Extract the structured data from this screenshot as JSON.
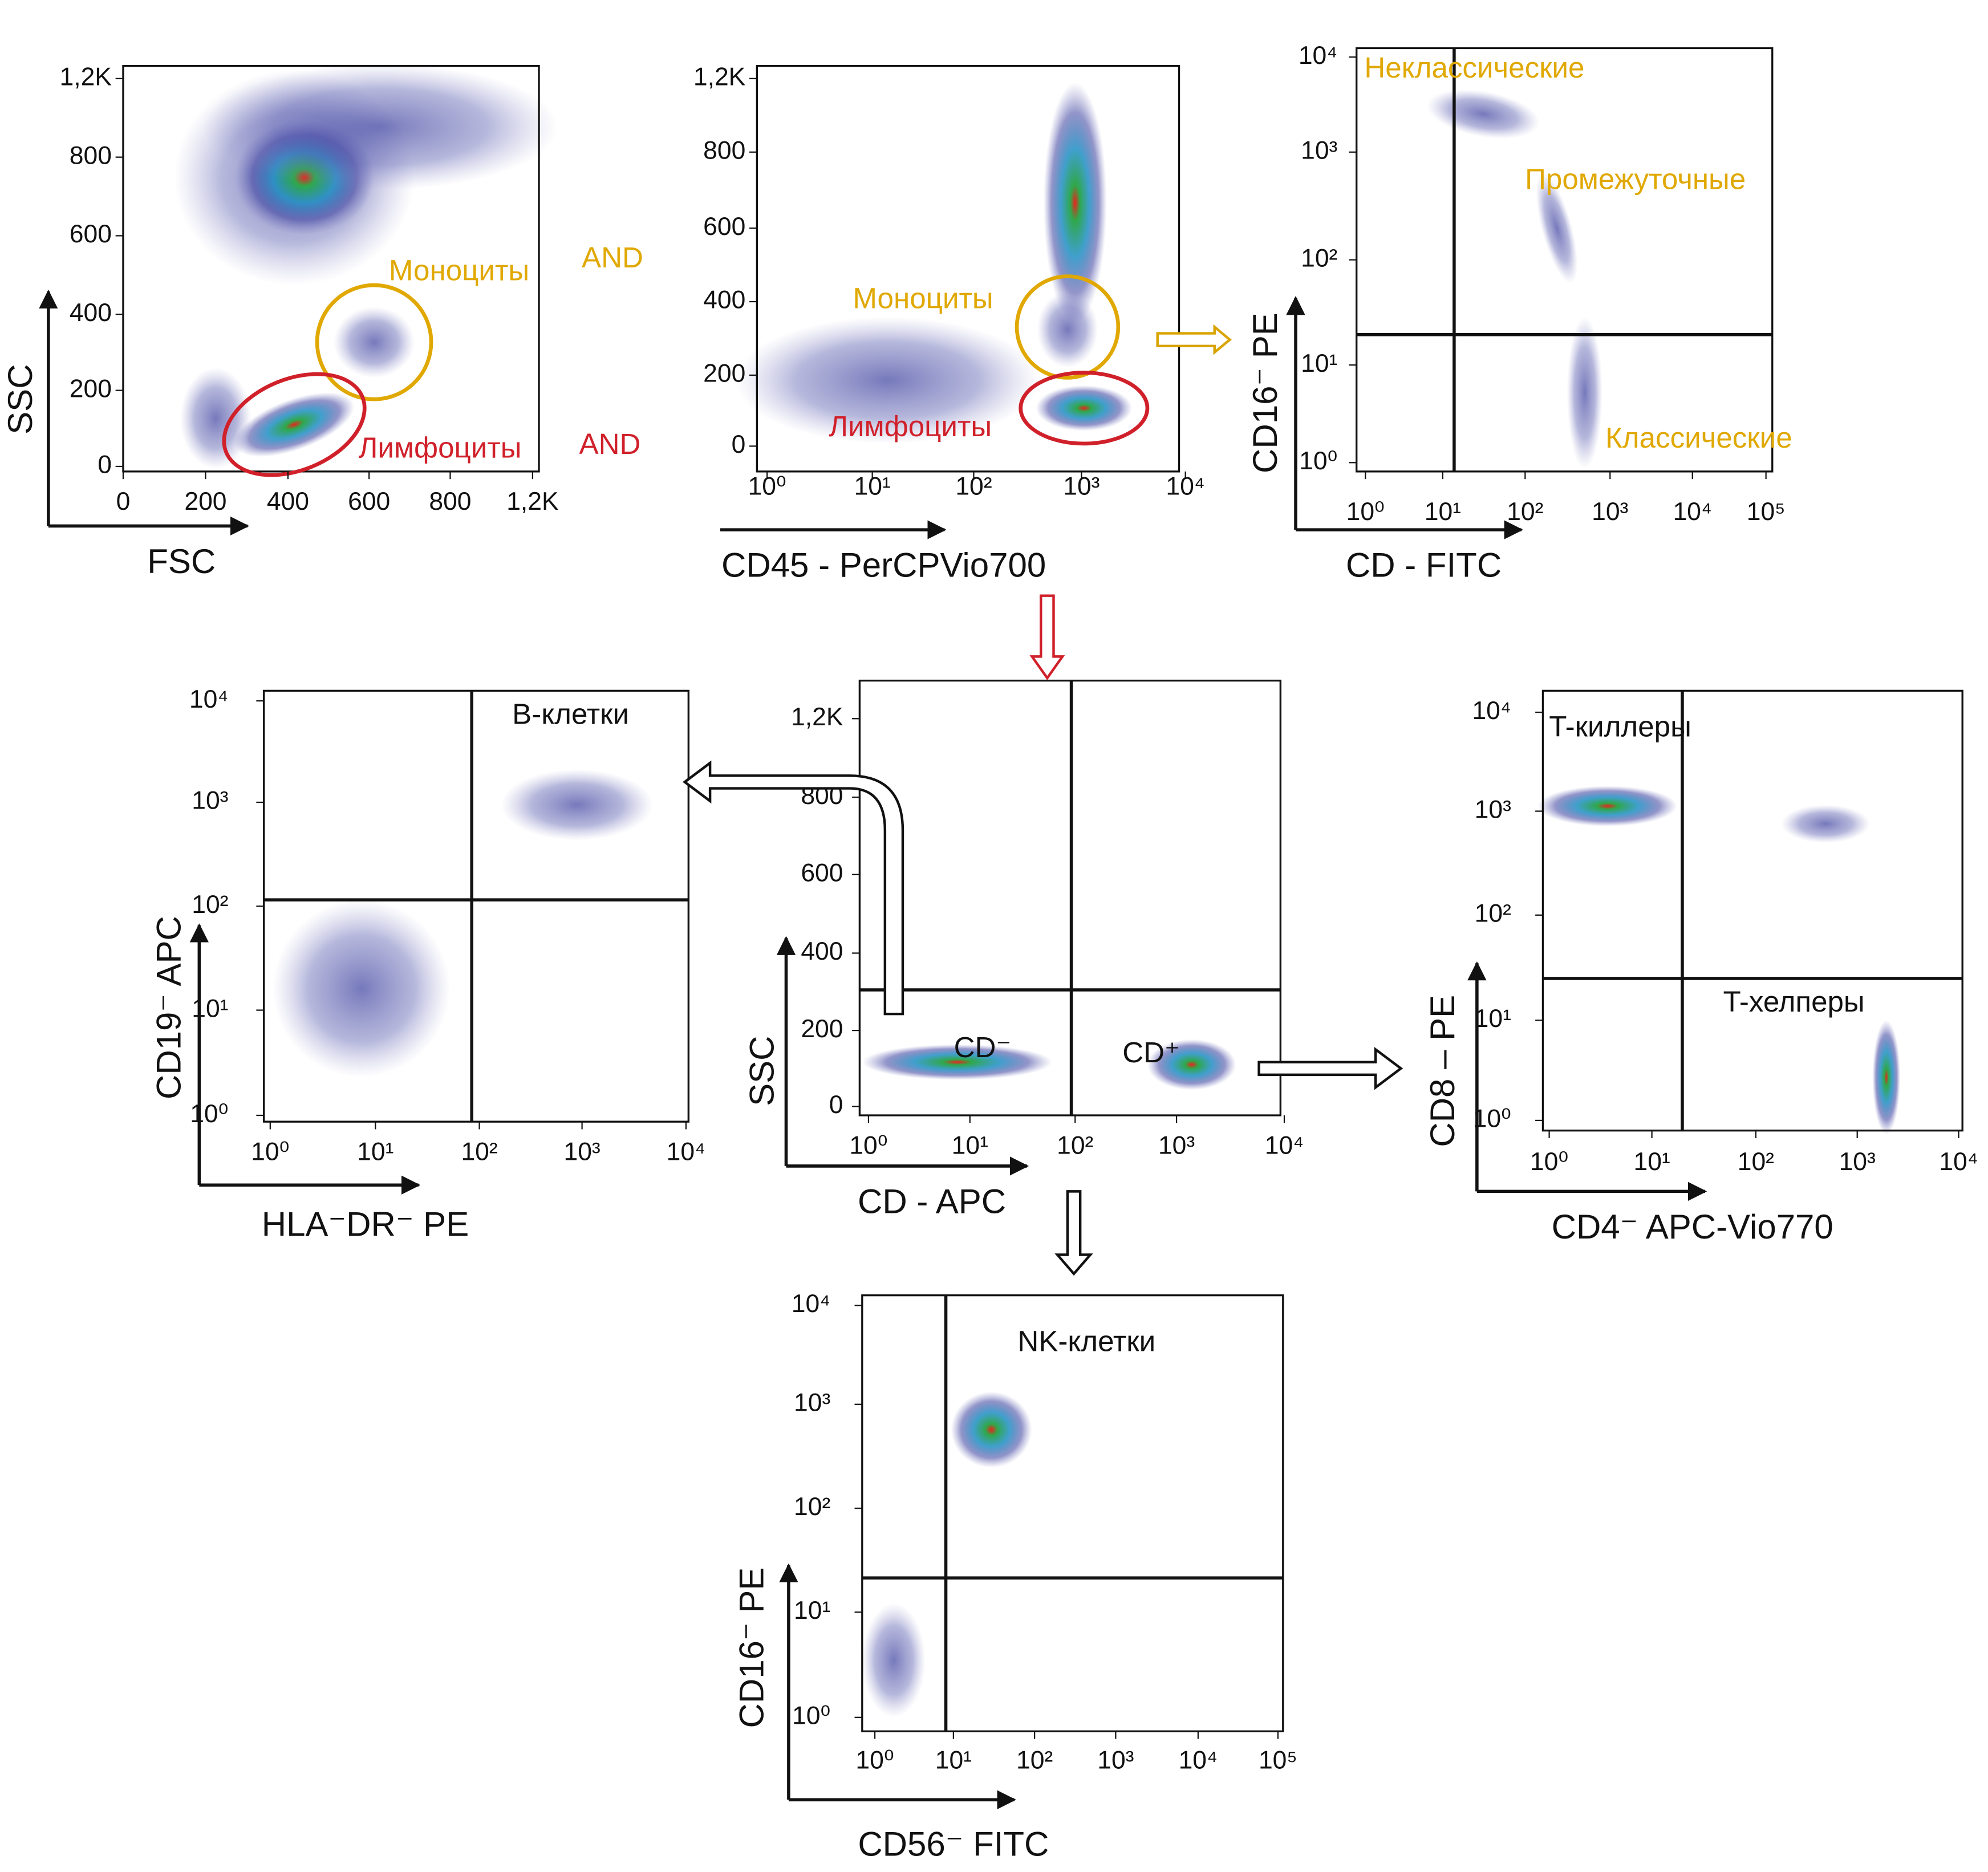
{
  "panels": [
    {
      "x_label": "FSC",
      "y_label": "SSC",
      "x_ticks": [
        "0",
        "200",
        "400",
        "600",
        "800",
        "1,2K"
      ],
      "y_ticks": [
        "1,2K",
        "800",
        "600",
        "400",
        "200",
        "0"
      ],
      "annotations": [
        "Моноциты",
        "AND",
        "Лимфоциты",
        "AND"
      ]
    },
    {
      "x_label": "CD45 - PerCPVio700",
      "y_label": null,
      "x_ticks": [
        "10⁰",
        "10¹",
        "10²",
        "10³",
        "10⁴"
      ],
      "y_ticks": [
        "1,2K",
        "800",
        "600",
        "400",
        "200",
        "0"
      ],
      "annotations": [
        "Моноциты",
        "Лимфоциты"
      ]
    },
    {
      "x_label": "CD - FITC",
      "y_label": "CD16⁻ PE",
      "x_ticks": [
        "10⁰",
        "10¹",
        "10²",
        "10³",
        "10⁴",
        "10⁵"
      ],
      "y_ticks": [
        "10⁴",
        "10³",
        "10²",
        "10¹",
        "10⁰"
      ],
      "annotations": [
        "Неклассические",
        "Промежуточные",
        "Классические"
      ]
    },
    {
      "x_label": "HLA⁻DR⁻ PE",
      "y_label": "CD19⁻ APC",
      "x_ticks": [
        "10⁰",
        "10¹",
        "10²",
        "10³",
        "10⁴"
      ],
      "y_ticks": [
        "10⁴",
        "10³",
        "10²",
        "10¹",
        "10⁰"
      ],
      "annotations": [
        "B-клетки"
      ]
    },
    {
      "x_label": "CD - APC",
      "y_label": "SSC",
      "x_ticks": [
        "10⁰",
        "10¹",
        "10²",
        "10³",
        "10⁴"
      ],
      "y_ticks": [
        "1,2K",
        "800",
        "600",
        "400",
        "200",
        "0"
      ],
      "annotations": [
        "CD⁻",
        "CD⁺"
      ]
    },
    {
      "x_label": "CD4⁻ APC-Vio770",
      "y_label": "CD8 – PE",
      "x_ticks": [
        "10⁰",
        "10¹",
        "10²",
        "10³",
        "10⁴"
      ],
      "y_ticks": [
        "10⁴",
        "10³",
        "10²",
        "10¹",
        "10⁰"
      ],
      "annotations": [
        "T-киллеры",
        "T-хелперы"
      ]
    },
    {
      "x_label": "CD56⁻ FITC",
      "y_label": "CD16⁻ PE",
      "x_ticks": [
        "10⁰",
        "10¹",
        "10²",
        "10³",
        "10⁴",
        "10⁵"
      ],
      "y_ticks": [
        "10⁴",
        "10³",
        "10²",
        "10¹",
        "10⁰"
      ],
      "annotations": [
        "NK-клетки"
      ]
    }
  ]
}
